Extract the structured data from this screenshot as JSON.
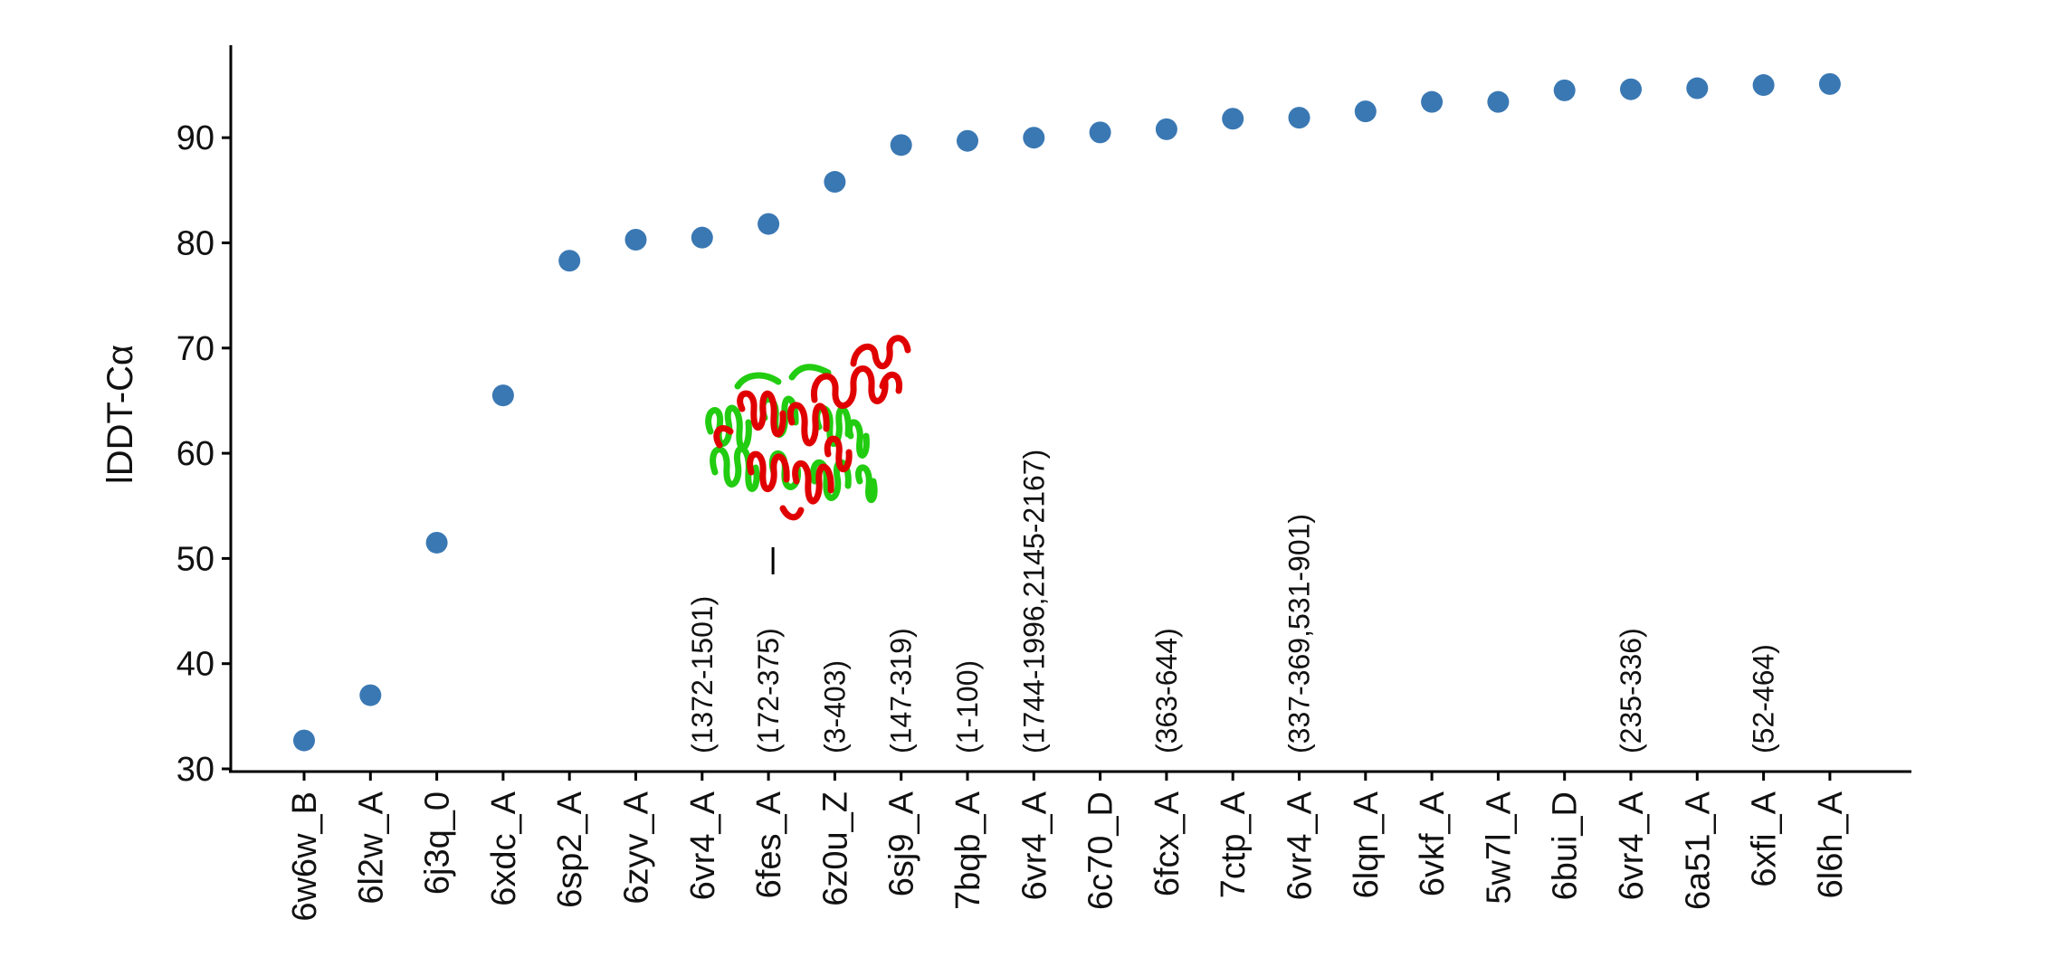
{
  "chart_data": {
    "type": "scatter",
    "title": "",
    "xlabel": "",
    "ylabel": "lDDT-Cα",
    "ylim": [
      30,
      98
    ],
    "yticks": [
      30,
      40,
      50,
      60,
      70,
      80,
      90
    ],
    "grid": false,
    "legend": "none",
    "marker_color": "#3a78b3",
    "categories": [
      "6w6w_B",
      "6l2w_A",
      "6j3q_0",
      "6xdc_A",
      "6sp2_A",
      "6zyv_A",
      "6vr4_A",
      "6fes_A",
      "6z0u_Z",
      "6sj9_A",
      "7bqb_A",
      "6vr4_A",
      "6c70_D",
      "6fcx_A",
      "7ctp_A",
      "6vr4_A",
      "6lqn_A",
      "6vkf_A",
      "5w7l_A",
      "6bui_D",
      "6vr4_A",
      "6a51_A",
      "6xfi_A",
      "6l6h_A"
    ],
    "values": [
      32.7,
      37.0,
      51.5,
      65.5,
      78.3,
      80.3,
      80.5,
      81.8,
      85.8,
      89.3,
      89.7,
      90.0,
      90.5,
      90.8,
      91.8,
      91.9,
      92.5,
      93.4,
      93.4,
      94.5,
      94.6,
      94.7,
      95.0,
      95.1
    ],
    "annotations": [
      {
        "index": 6,
        "text": "(1372-1501)"
      },
      {
        "index": 7,
        "text": "(172-375)"
      },
      {
        "index": 8,
        "text": "(3-403)"
      },
      {
        "index": 9,
        "text": "(147-319)"
      },
      {
        "index": 10,
        "text": "(1-100)"
      },
      {
        "index": 11,
        "text": "(1744-1996,2145-2167)"
      },
      {
        "index": 13,
        "text": "(363-644)"
      },
      {
        "index": 15,
        "text": "(337-369,531-901)"
      },
      {
        "index": 20,
        "text": "(235-336)"
      },
      {
        "index": 22,
        "text": "(52-464)"
      }
    ],
    "inset_image": {
      "description_icon": "protein-structure-icon",
      "colors": [
        "#e00000",
        "#22cc11"
      ],
      "pointer_index": 7
    }
  }
}
